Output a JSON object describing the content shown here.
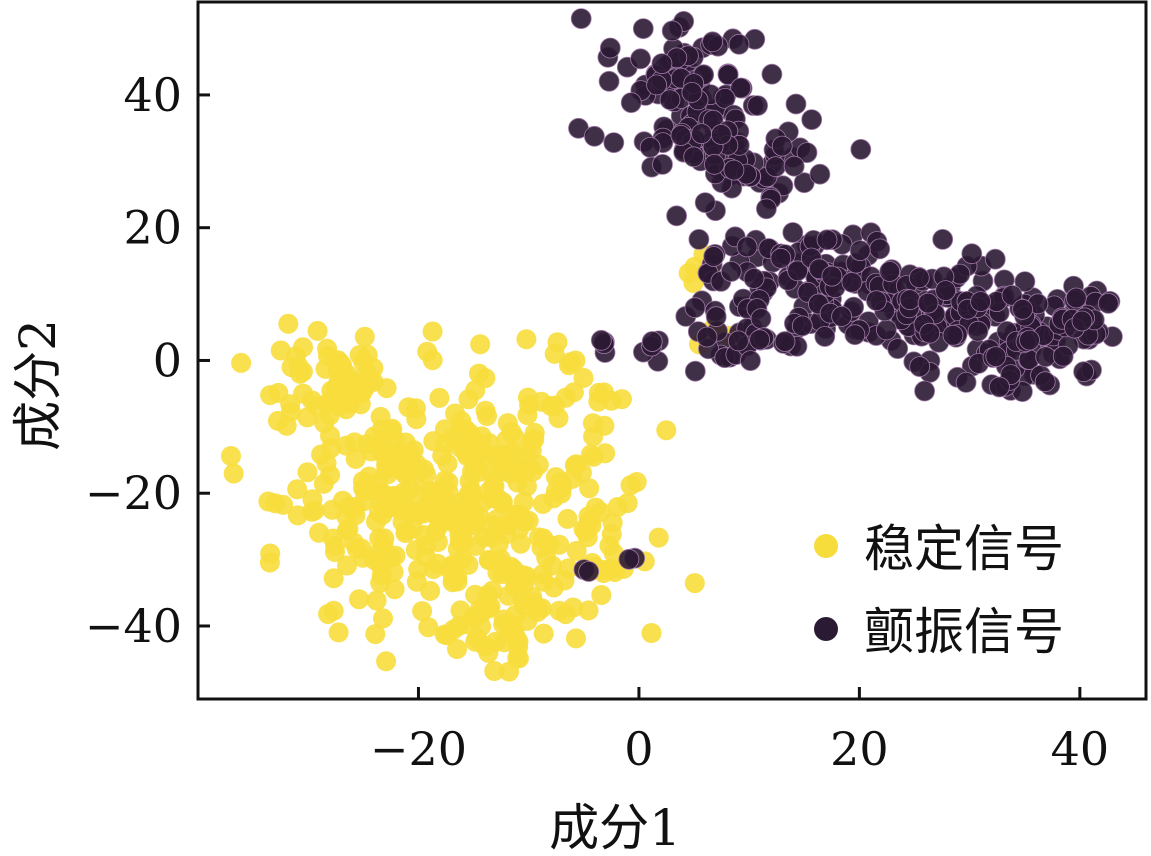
{
  "chart_data": {
    "type": "scatter",
    "title": "",
    "xlabel": "成分1",
    "ylabel": "成分2",
    "xlim": [
      -40,
      46
    ],
    "ylim": [
      -51,
      54
    ],
    "xticks": [
      {
        "value": -20,
        "label": "−20"
      },
      {
        "value": 0,
        "label": "0"
      },
      {
        "value": 20,
        "label": "20"
      },
      {
        "value": 40,
        "label": "40"
      }
    ],
    "yticks": [
      {
        "value": 40,
        "label": "40"
      },
      {
        "value": 20,
        "label": "20"
      },
      {
        "value": 0,
        "label": "0"
      },
      {
        "value": -20,
        "label": "−20"
      },
      {
        "value": -40,
        "label": "−40"
      }
    ],
    "grid": false,
    "legend_position": "lower-right",
    "series": [
      {
        "name": "稳定信号",
        "color": "#f7dd3c",
        "clusters": [
          {
            "cx": -17,
            "cy": -22,
            "sx": 7.5,
            "sy": 8.5,
            "n": 380
          },
          {
            "cx": -27,
            "cy": -4,
            "sx": 3,
            "sy": 3,
            "n": 55
          },
          {
            "cx": -12,
            "cy": -40,
            "sx": 3,
            "sy": 3,
            "n": 40
          },
          {
            "cx": -6,
            "cy": -2,
            "sx": 2,
            "sy": 3,
            "n": 15
          },
          {
            "cx": -3,
            "cy": -31,
            "sx": 2,
            "sy": 2,
            "n": 10
          },
          {
            "cx": 5.5,
            "cy": 14,
            "sx": 1.2,
            "sy": 1.5,
            "n": 6
          },
          {
            "cx": 7.5,
            "cy": 3.5,
            "sx": 1.2,
            "sy": 1.2,
            "n": 4
          }
        ]
      },
      {
        "name": "颤振信号",
        "color": "#2b1a33",
        "clusters": [
          {
            "cx": 4,
            "cy": 42,
            "sx": 3.5,
            "sy": 4.5,
            "n": 90
          },
          {
            "cx": 9,
            "cy": 31,
            "sx": 4.5,
            "sy": 4,
            "n": 80
          },
          {
            "cx": 16,
            "cy": 13,
            "sx": 6,
            "sy": 4,
            "n": 120
          },
          {
            "cx": 26,
            "cy": 8,
            "sx": 4,
            "sy": 4,
            "n": 80
          },
          {
            "cx": 34,
            "cy": 3,
            "sx": 4,
            "sy": 4,
            "n": 100
          },
          {
            "cx": 40,
            "cy": 6,
            "sx": 1.5,
            "sy": 2,
            "n": 25
          },
          {
            "cx": 10,
            "cy": 3,
            "sx": 2.5,
            "sy": 2,
            "n": 35
          },
          {
            "cx": -3.5,
            "cy": 1,
            "sx": 1.5,
            "sy": 1,
            "n": 5
          },
          {
            "cx": 1,
            "cy": 2.5,
            "sx": 0.5,
            "sy": 0.5,
            "n": 3
          },
          {
            "cx": -1,
            "cy": -30,
            "sx": 0.5,
            "sy": 0.5,
            "n": 2
          },
          {
            "cx": -5,
            "cy": -32,
            "sx": 0.5,
            "sy": 0.5,
            "n": 2
          }
        ]
      }
    ]
  }
}
